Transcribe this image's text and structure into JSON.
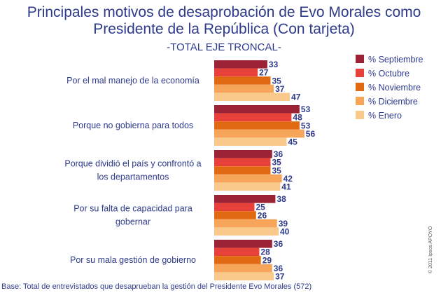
{
  "title_line1": "Principales motivos de desaprobación de Evo Morales como",
  "title_line2": "Presidente de la República (Con tarjeta)",
  "subtitle": "-TOTAL EJE TRONCAL-",
  "footnote": "Base: Total de entrevistados que desaprueban la gestión del Presidente Evo Morales (572)",
  "copyright": "© 2011 Ipsos APOYO",
  "chart_data": {
    "type": "bar",
    "orientation": "horizontal",
    "categories": [
      [
        "Por el mal manejo de la economía"
      ],
      [
        "Porque no gobierna para todos"
      ],
      [
        "Porque dividió el país y confrontó a",
        "los departamentos"
      ],
      [
        "Por su falta de capacidad para",
        "gobernar"
      ],
      [
        "Por su mala gestión de gobierno"
      ]
    ],
    "series": [
      {
        "name": "% Septiembre",
        "color": "#9b2335",
        "values": [
          33,
          53,
          36,
          38,
          36
        ]
      },
      {
        "name": "% Octubre",
        "color": "#e8413c",
        "values": [
          27,
          48,
          35,
          25,
          28
        ]
      },
      {
        "name": "% Noviembre",
        "color": "#e06a12",
        "values": [
          35,
          53,
          35,
          26,
          29
        ]
      },
      {
        "name": "% Diciembre",
        "color": "#f7a55a",
        "values": [
          37,
          56,
          42,
          39,
          36
        ]
      },
      {
        "name": "% Enero",
        "color": "#f9c98c",
        "values": [
          47,
          45,
          41,
          40,
          37
        ]
      }
    ],
    "legend_position": "right",
    "grid": false
  }
}
